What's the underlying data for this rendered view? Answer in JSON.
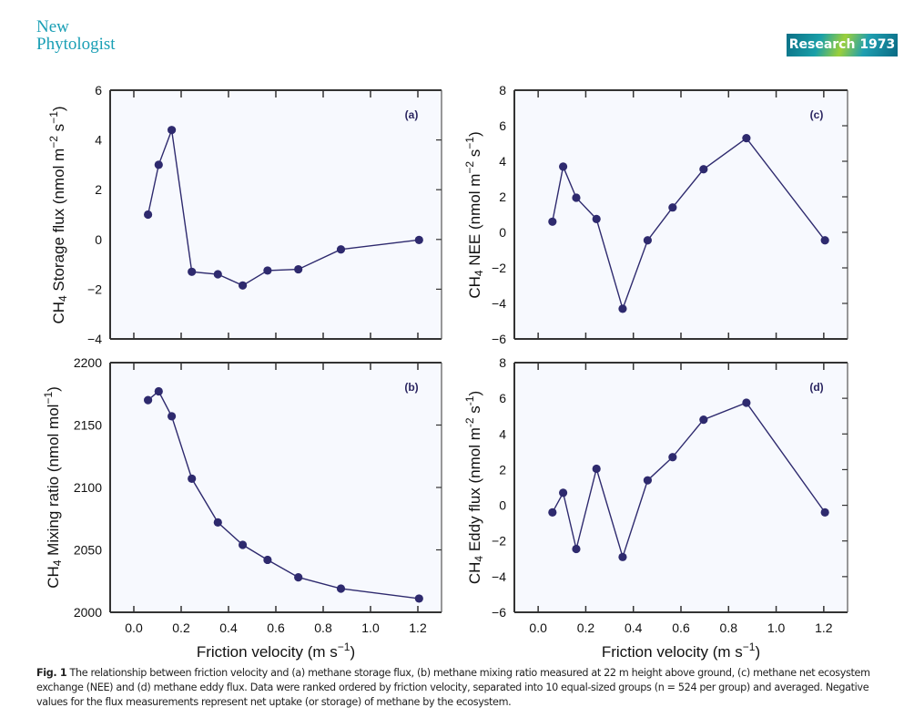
{
  "header": {
    "journal_line1": "New",
    "journal_line2": "Phytologist",
    "section_badge": "Research 1973"
  },
  "caption": {
    "label": "Fig. 1",
    "text": " The relationship between friction velocity and (a) methane storage flux, (b) methane mixing ratio measured at 22 m height above ground, (c) methane net ecosystem exchange (NEE) and (d) methane eddy flux. Data were ranked ordered by friction velocity, separated into 10 equal-sized groups (n = 524 per group) and averaged. Negative values for the flux measurements represent net uptake (or storage) of methane by the ecosystem."
  },
  "colors": {
    "series": "#2e2a6e",
    "plot_bg": "#f7f9fe",
    "journal": "#1a9fb5"
  },
  "chart_data": [
    {
      "id": "a",
      "type": "line",
      "panel_tag": "(a)",
      "xlabel": "",
      "ylabel": "CH4 Storage flux (nmol m-2 s-1)",
      "ylabel_parts": {
        "pre": "CH",
        "sub": "4",
        "mid": " Storage flux (nmol m",
        "sup1": "−2",
        "mid2": " s",
        "sup2": "−1",
        "post": ")"
      },
      "xlim": [
        -0.1,
        1.3
      ],
      "ylim": [
        -4,
        6
      ],
      "xticks": [
        0.0,
        0.2,
        0.4,
        0.6,
        0.8,
        1.0,
        1.2
      ],
      "xtick_labels": [],
      "yticks": [
        -4,
        -2,
        0,
        2,
        4,
        6
      ],
      "ytick_labels": [
        "−4",
        "−2",
        "0",
        "2",
        "4",
        "6"
      ],
      "x": [
        0.06,
        0.105,
        0.16,
        0.245,
        0.355,
        0.46,
        0.565,
        0.695,
        0.875,
        1.205
      ],
      "y": [
        1.0,
        3.0,
        4.4,
        -1.3,
        -1.4,
        -1.85,
        -1.25,
        -1.2,
        -0.4,
        -0.02
      ]
    },
    {
      "id": "b",
      "type": "line",
      "panel_tag": "(b)",
      "xlabel": "Friction velocity (m s-1)",
      "ylabel": "CH4 Mixing ratio (nmol mol-1)",
      "ylabel_parts": {
        "pre": "CH",
        "sub": "4",
        "mid": " Mixing ratio (nmol mol",
        "sup1": "−1",
        "mid2": "",
        "sup2": "",
        "post": ")"
      },
      "xlim": [
        -0.1,
        1.3
      ],
      "ylim": [
        2000,
        2200
      ],
      "xticks": [
        0.0,
        0.2,
        0.4,
        0.6,
        0.8,
        1.0,
        1.2
      ],
      "xtick_labels": [
        "0.0",
        "0.2",
        "0.4",
        "0.6",
        "0.8",
        "1.0",
        "1.2"
      ],
      "yticks": [
        2000,
        2050,
        2100,
        2150,
        2200
      ],
      "ytick_labels": [
        "2000",
        "2050",
        "2100",
        "2150",
        "2200"
      ],
      "x": [
        0.06,
        0.105,
        0.16,
        0.245,
        0.355,
        0.46,
        0.565,
        0.695,
        0.875,
        1.205
      ],
      "y": [
        2170,
        2177,
        2157,
        2107,
        2072,
        2054,
        2042,
        2028,
        2019,
        2011
      ]
    },
    {
      "id": "c",
      "type": "line",
      "panel_tag": "(c)",
      "xlabel": "",
      "ylabel": "CH4 NEE (nmol m-2 s-1)",
      "ylabel_parts": {
        "pre": "CH",
        "sub": "4",
        "mid": " NEE (nmol m",
        "sup1": "−2",
        "mid2": " s",
        "sup2": "−1",
        "post": ")"
      },
      "xlim": [
        -0.1,
        1.3
      ],
      "ylim": [
        -6,
        8
      ],
      "xticks": [
        0.0,
        0.2,
        0.4,
        0.6,
        0.8,
        1.0,
        1.2
      ],
      "xtick_labels": [],
      "yticks": [
        -6,
        -4,
        -2,
        0,
        2,
        4,
        6,
        8
      ],
      "ytick_labels": [
        "−6",
        "−4",
        "−2",
        "0",
        "2",
        "4",
        "6",
        "8"
      ],
      "x": [
        0.06,
        0.105,
        0.16,
        0.245,
        0.355,
        0.46,
        0.565,
        0.695,
        0.875,
        1.205
      ],
      "y": [
        0.6,
        3.7,
        1.95,
        0.75,
        -4.3,
        -0.45,
        1.4,
        3.55,
        5.3,
        -0.45
      ]
    },
    {
      "id": "d",
      "type": "line",
      "panel_tag": "(d)",
      "xlabel": "Friction velocity (m s-1)",
      "ylabel": "CH4 Eddy flux (nmol m-2 s-1)",
      "ylabel_parts": {
        "pre": "CH",
        "sub": "4",
        "mid": " Eddy flux (nmol m",
        "sup1": "-2",
        "mid2": " s",
        "sup2": "-1",
        "post": ")"
      },
      "xlim": [
        -0.1,
        1.3
      ],
      "ylim": [
        -6,
        8
      ],
      "xticks": [
        0.0,
        0.2,
        0.4,
        0.6,
        0.8,
        1.0,
        1.2
      ],
      "xtick_labels": [
        "0.0",
        "0.2",
        "0.4",
        "0.6",
        "0.8",
        "1.0",
        "1.2"
      ],
      "yticks": [
        -6,
        -4,
        -2,
        0,
        2,
        4,
        6,
        8
      ],
      "ytick_labels": [
        "−6",
        "−4",
        "−2",
        "0",
        "2",
        "4",
        "6",
        "8"
      ],
      "x": [
        0.06,
        0.105,
        0.16,
        0.245,
        0.355,
        0.46,
        0.565,
        0.695,
        0.875,
        1.205
      ],
      "y": [
        -0.4,
        0.7,
        -2.45,
        2.05,
        -2.9,
        1.4,
        2.7,
        4.8,
        5.75,
        -0.4
      ]
    }
  ],
  "xaxis_label": {
    "pre": "Friction velocity (m s",
    "sup": "−1",
    "post": ")"
  }
}
